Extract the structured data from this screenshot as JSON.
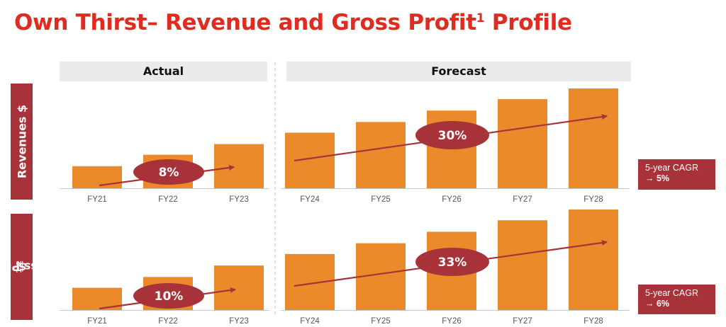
{
  "title": "Own Thirst– Revenue and Gross Profit",
  "title_sup": "1",
  "headers": {
    "actual": "Actual",
    "forecast": "Forecast"
  },
  "panels": {
    "revenue": {
      "label": "Revenues $",
      "label_sup": ""
    },
    "gross_profit": {
      "label": "Gross Profit",
      "label_sup": "1,2",
      "label_suffix": " $"
    }
  },
  "cagr": {
    "revenue": {
      "label": "5-year CAGR",
      "value": "→ 5%"
    },
    "gross_profit": {
      "label": "5-year CAGR",
      "value": "→ 6%"
    }
  },
  "colors": {
    "bar": "#ea8a2a",
    "accent": "#a7323a",
    "title": "#e02b20"
  },
  "chart_data": [
    {
      "type": "bar",
      "name": "Revenues $",
      "categories": [
        "FY21",
        "FY22",
        "FY23",
        "FY24",
        "FY25",
        "FY26",
        "FY27",
        "FY28"
      ],
      "values": [
        31,
        47,
        62,
        78,
        93,
        109,
        125,
        140
      ],
      "ylim": [
        0,
        140
      ],
      "groups": {
        "actual": [
          "FY21",
          "FY22",
          "FY23"
        ],
        "forecast": [
          "FY24",
          "FY25",
          "FY26",
          "FY27",
          "FY28"
        ]
      },
      "annotations": [
        {
          "label": "8%",
          "span": [
            "FY21",
            "FY23"
          ]
        },
        {
          "label": "30%",
          "span": [
            "FY24",
            "FY28"
          ]
        }
      ]
    },
    {
      "type": "bar",
      "name": "Gross Profit $",
      "categories": [
        "FY21",
        "FY22",
        "FY23",
        "FY24",
        "FY25",
        "FY26",
        "FY27",
        "FY28"
      ],
      "values": [
        31,
        46,
        62,
        78,
        93,
        109,
        125,
        140
      ],
      "ylim": [
        0,
        140
      ],
      "groups": {
        "actual": [
          "FY21",
          "FY22",
          "FY23"
        ],
        "forecast": [
          "FY24",
          "FY25",
          "FY26",
          "FY27",
          "FY28"
        ]
      },
      "annotations": [
        {
          "label": "10%",
          "span": [
            "FY21",
            "FY23"
          ]
        },
        {
          "label": "33%",
          "span": [
            "FY24",
            "FY28"
          ]
        }
      ]
    }
  ]
}
